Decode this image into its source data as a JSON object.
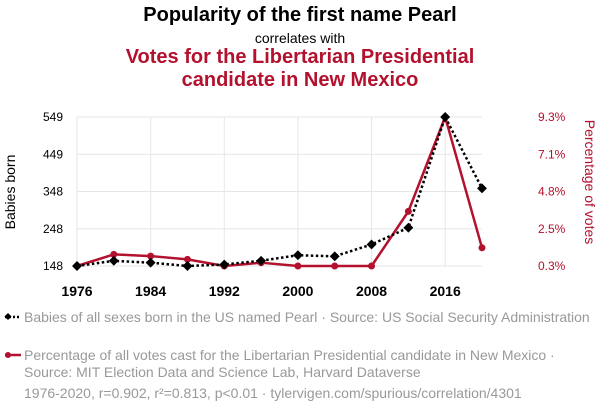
{
  "title": "Popularity of the first name Pearl",
  "connector": "correlates with",
  "title2": "Votes for the Libertarian Presidential candidate in New Mexico",
  "legend": {
    "series1": "Babies of all sexes born in the US named Pearl · Source: US Social Security Administration",
    "series2": "Percentage of all votes cast for the Libertarian Presidential candidate in New Mexico · Source: MIT Election Data and Science Lab, Harvard Dataverse"
  },
  "footer": "1976-2020, r=0.902, r²=0.813, p<0.01 · tylervigen.com/spurious/correlation/4301",
  "colors": {
    "series1": "#000000",
    "series2": "#b3112e"
  },
  "chart_data": {
    "type": "line",
    "x": [
      1976,
      1980,
      1984,
      1988,
      1992,
      1996,
      2000,
      2004,
      2008,
      2012,
      2016,
      2020
    ],
    "xticks": [
      "1976",
      "1984",
      "1992",
      "2000",
      "2008",
      "2016"
    ],
    "xlim": [
      1976,
      2020
    ],
    "series": [
      {
        "name": "Babies of all sexes born in the US named Pearl",
        "axis": "left",
        "ylabel": "Babies born",
        "yticks": [
          "549",
          "449",
          "348",
          "248",
          "148"
        ],
        "ylim": [
          148,
          549
        ],
        "values": [
          148,
          162,
          157,
          148,
          152,
          162,
          177,
          174,
          206,
          251,
          549,
          357
        ]
      },
      {
        "name": "Percentage of all votes cast for the Libertarian Presidential candidate in New Mexico",
        "axis": "right",
        "ylabel": "Percentage of votes",
        "yticks": [
          "9.3%",
          "7.1%",
          "4.8%",
          "2.5%",
          "0.3%"
        ],
        "ylim": [
          0.3,
          9.3
        ],
        "values": [
          0.3,
          1.0,
          0.9,
          0.7,
          0.3,
          0.5,
          0.3,
          0.3,
          0.3,
          3.6,
          9.3,
          1.4
        ]
      }
    ]
  }
}
